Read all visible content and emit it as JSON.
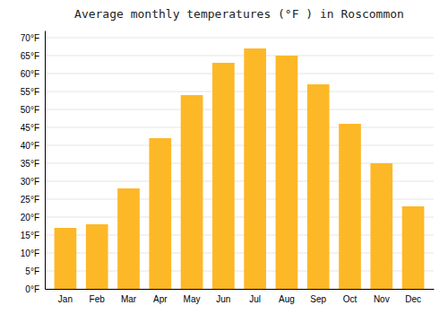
{
  "chart_data": {
    "type": "bar",
    "title": "Average monthly temperatures (°F ) in Roscommon",
    "categories": [
      "Jan",
      "Feb",
      "Mar",
      "Apr",
      "May",
      "Jun",
      "Jul",
      "Aug",
      "Sep",
      "Oct",
      "Nov",
      "Dec"
    ],
    "values": [
      17,
      18,
      28,
      42,
      54,
      63,
      67,
      65,
      57,
      46,
      35,
      23
    ],
    "color": "#FDB827",
    "ylim": [
      0,
      72
    ],
    "yticks": [
      {
        "value": 0,
        "label": "0°F"
      },
      {
        "value": 5,
        "label": "5°F"
      },
      {
        "value": 10,
        "label": "10°F"
      },
      {
        "value": 15,
        "label": "15°F"
      },
      {
        "value": 20,
        "label": "20°F"
      },
      {
        "value": 25,
        "label": "25°F"
      },
      {
        "value": 30,
        "label": "30°F"
      },
      {
        "value": 35,
        "label": "35°F"
      },
      {
        "value": 40,
        "label": "40°F"
      },
      {
        "value": 45,
        "label": "45°F"
      },
      {
        "value": 50,
        "label": "50°F"
      },
      {
        "value": 55,
        "label": "55°F"
      },
      {
        "value": 60,
        "label": "60°F"
      },
      {
        "value": 65,
        "label": "65°F"
      },
      {
        "value": 70,
        "label": "70°F"
      }
    ],
    "grid": true
  }
}
